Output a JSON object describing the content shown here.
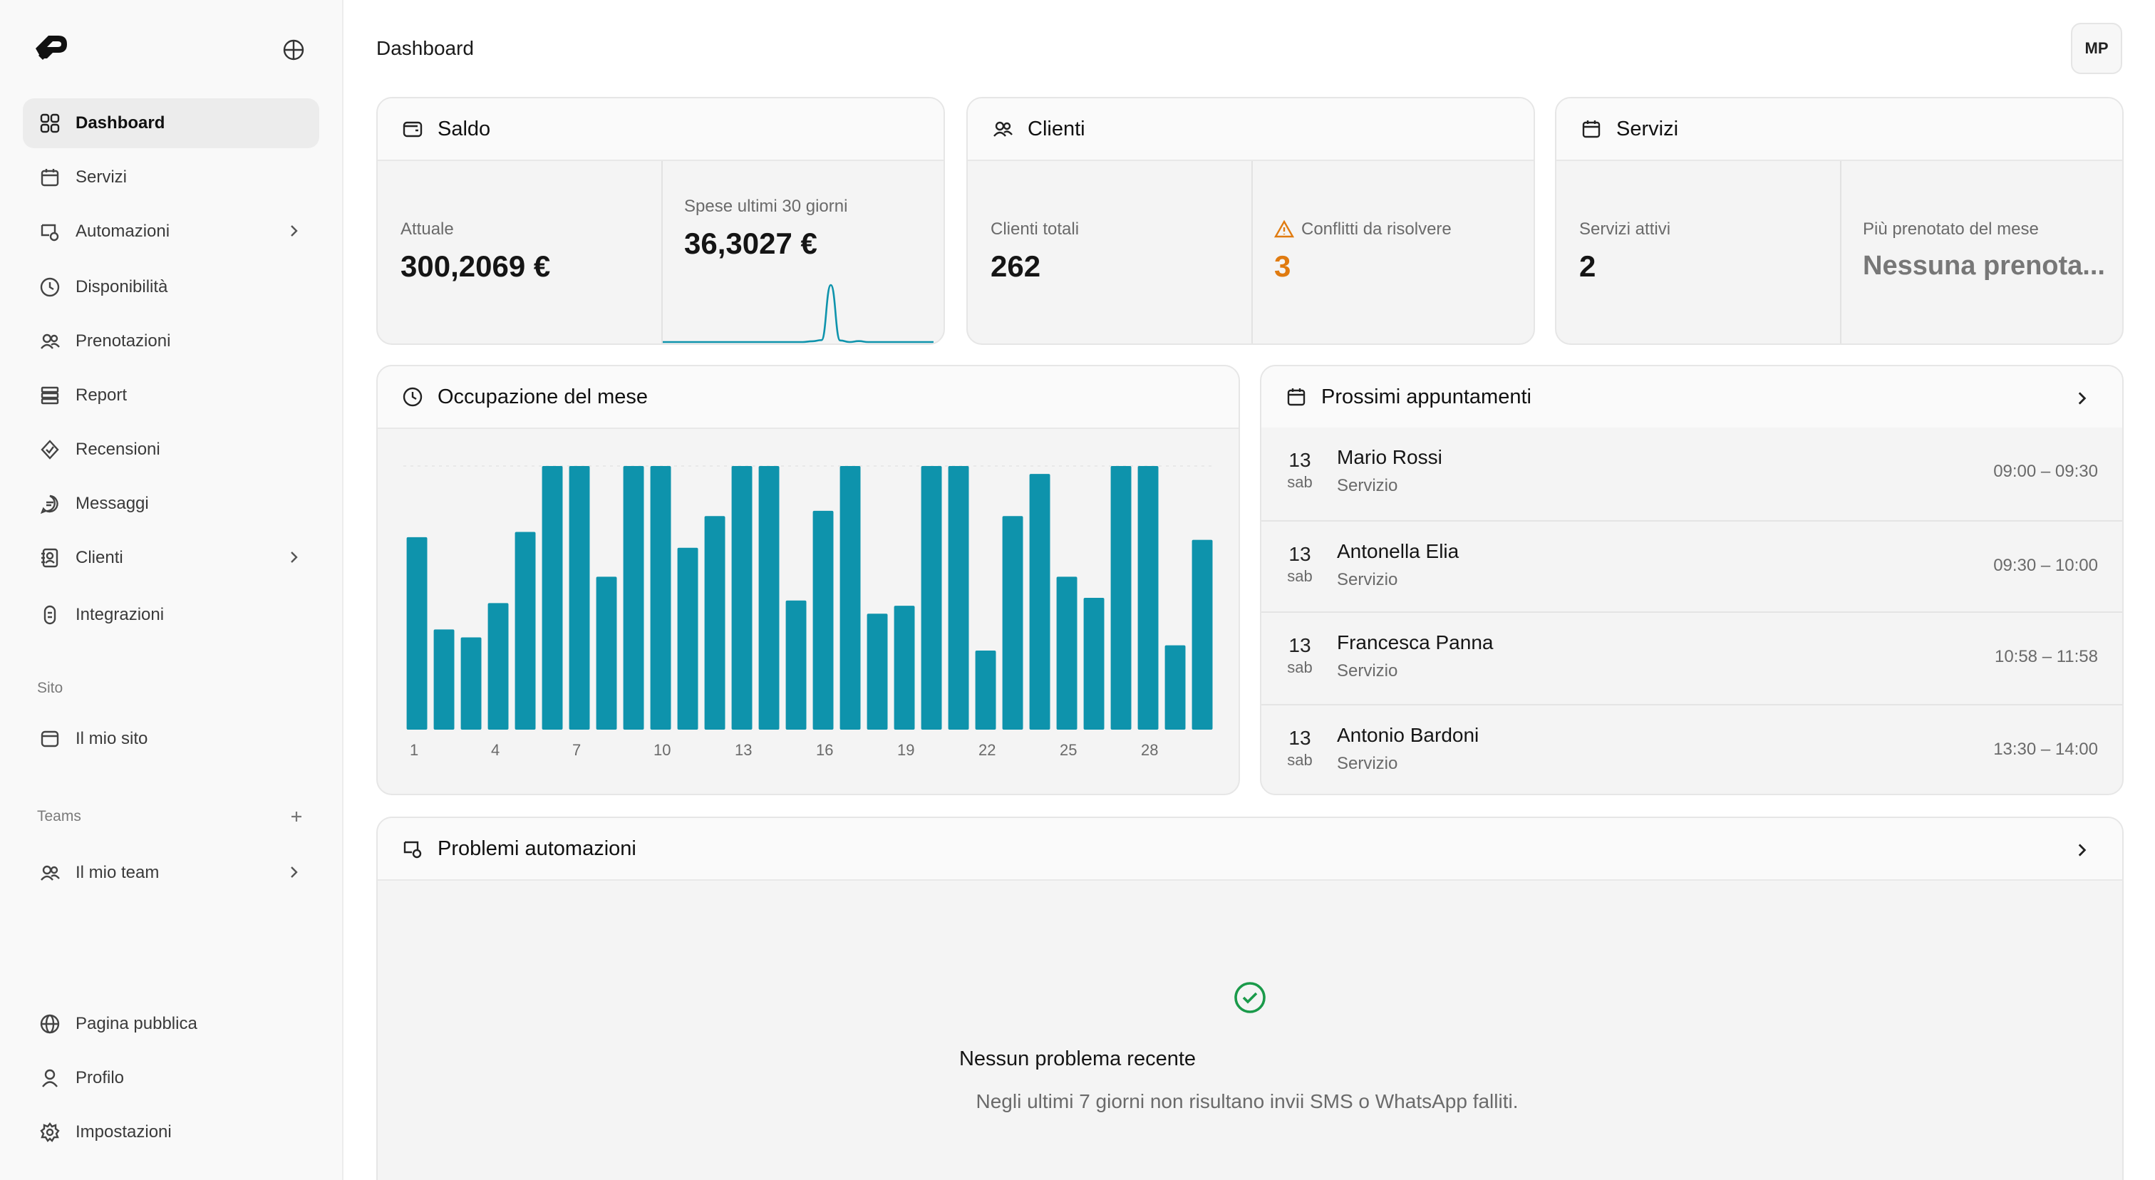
{
  "header": {
    "title": "Dashboard",
    "avatar_initials": "MP"
  },
  "sidebar": {
    "items": [
      {
        "label": "Dashboard",
        "icon": "grid-icon",
        "active": true
      },
      {
        "label": "Servizi",
        "icon": "calendar-icon"
      },
      {
        "label": "Automazioni",
        "icon": "automation-icon",
        "has_submenu": true
      },
      {
        "label": "Disponibilità",
        "icon": "clock-icon"
      },
      {
        "label": "Prenotazioni",
        "icon": "users-icon"
      },
      {
        "label": "Report",
        "icon": "report-icon"
      },
      {
        "label": "Recensioni",
        "icon": "badge-check-icon"
      },
      {
        "label": "Messaggi",
        "icon": "message-icon"
      },
      {
        "label": "Clienti",
        "icon": "contacts-icon",
        "has_submenu": true
      },
      {
        "label": "Integrazioni",
        "icon": "link-icon"
      }
    ],
    "site_section": {
      "label": "Sito",
      "items": [
        {
          "label": "Il mio sito",
          "icon": "site-icon"
        }
      ]
    },
    "teams_section": {
      "label": "Teams",
      "items": [
        {
          "label": "Il mio team",
          "icon": "users-icon",
          "has_submenu": true
        }
      ]
    },
    "bottom_items": [
      {
        "label": "Pagina pubblica",
        "icon": "globe-icon"
      },
      {
        "label": "Profilo",
        "icon": "user-icon"
      },
      {
        "label": "Impostazioni",
        "icon": "gear-icon"
      }
    ]
  },
  "saldo": {
    "title": "Saldo",
    "current_label": "Attuale",
    "current_value": "300,2069 €",
    "spend_label": "Spese ultimi 30 giorni",
    "spend_value": "36,3027 €"
  },
  "clienti": {
    "title": "Clienti",
    "total_label": "Clienti totali",
    "total_value": "262",
    "conflicts_label": "Conflitti da risolvere",
    "conflicts_value": "3"
  },
  "servizi": {
    "title": "Servizi",
    "active_label": "Servizi attivi",
    "active_value": "2",
    "top_label": "Più prenotato del mese",
    "top_value": "Nessuna prenota..."
  },
  "occupazione": {
    "title": "Occupazione del mese"
  },
  "appointments": {
    "title": "Prossimi appuntamenti",
    "items": [
      {
        "day": "13",
        "dow": "sab",
        "name": "Mario Rossi",
        "service": "Servizio",
        "time": "09:00 – 09:30"
      },
      {
        "day": "13",
        "dow": "sab",
        "name": "Antonella Elia",
        "service": "Servizio",
        "time": "09:30 – 10:00"
      },
      {
        "day": "13",
        "dow": "sab",
        "name": "Francesca Panna",
        "service": "Servizio",
        "time": "10:58 – 11:58"
      },
      {
        "day": "13",
        "dow": "sab",
        "name": "Antonio Bardoni",
        "service": "Servizio",
        "time": "13:30 – 14:00"
      }
    ]
  },
  "problems": {
    "title": "Problemi automazioni",
    "empty_title": "Nessun problema recente",
    "empty_desc": "Negli ultimi 7 giorni non risultano invii SMS o WhatsApp falliti."
  },
  "colors": {
    "accent": "#0e93ac",
    "warning": "#e07b10",
    "success": "#1a9a4a"
  },
  "chart_data": [
    {
      "type": "bar",
      "categories": [
        1,
        2,
        3,
        4,
        5,
        6,
        7,
        8,
        9,
        10,
        11,
        12,
        13,
        14,
        15,
        16,
        17,
        18,
        19,
        20,
        21,
        22,
        23,
        24,
        25,
        26,
        27,
        28,
        29,
        30
      ],
      "tick_labels": [
        "1",
        "4",
        "7",
        "10",
        "13",
        "16",
        "19",
        "22",
        "25",
        "28"
      ],
      "values": [
        73,
        38,
        35,
        48,
        75,
        100,
        100,
        58,
        100,
        100,
        69,
        81,
        100,
        100,
        49,
        83,
        100,
        44,
        47,
        100,
        100,
        30,
        81,
        97,
        58,
        50,
        100,
        100,
        32,
        72
      ],
      "ylim": [
        0,
        100
      ],
      "grid": true,
      "title": ""
    },
    {
      "type": "line",
      "x": [
        1,
        2,
        3,
        4,
        5,
        6,
        7,
        8,
        9,
        10,
        11,
        12,
        13,
        14,
        15,
        16,
        17,
        18,
        19,
        20,
        21,
        22,
        23,
        24,
        25,
        26,
        27,
        28,
        29,
        30
      ],
      "values": [
        0,
        0,
        0,
        0,
        0,
        0,
        0,
        0,
        0,
        0,
        0,
        0,
        0,
        0,
        0,
        0,
        0.5,
        1.2,
        36.3,
        1.0,
        0,
        0.6,
        0,
        0,
        0,
        0,
        0,
        0,
        0,
        0
      ],
      "title": ""
    }
  ]
}
